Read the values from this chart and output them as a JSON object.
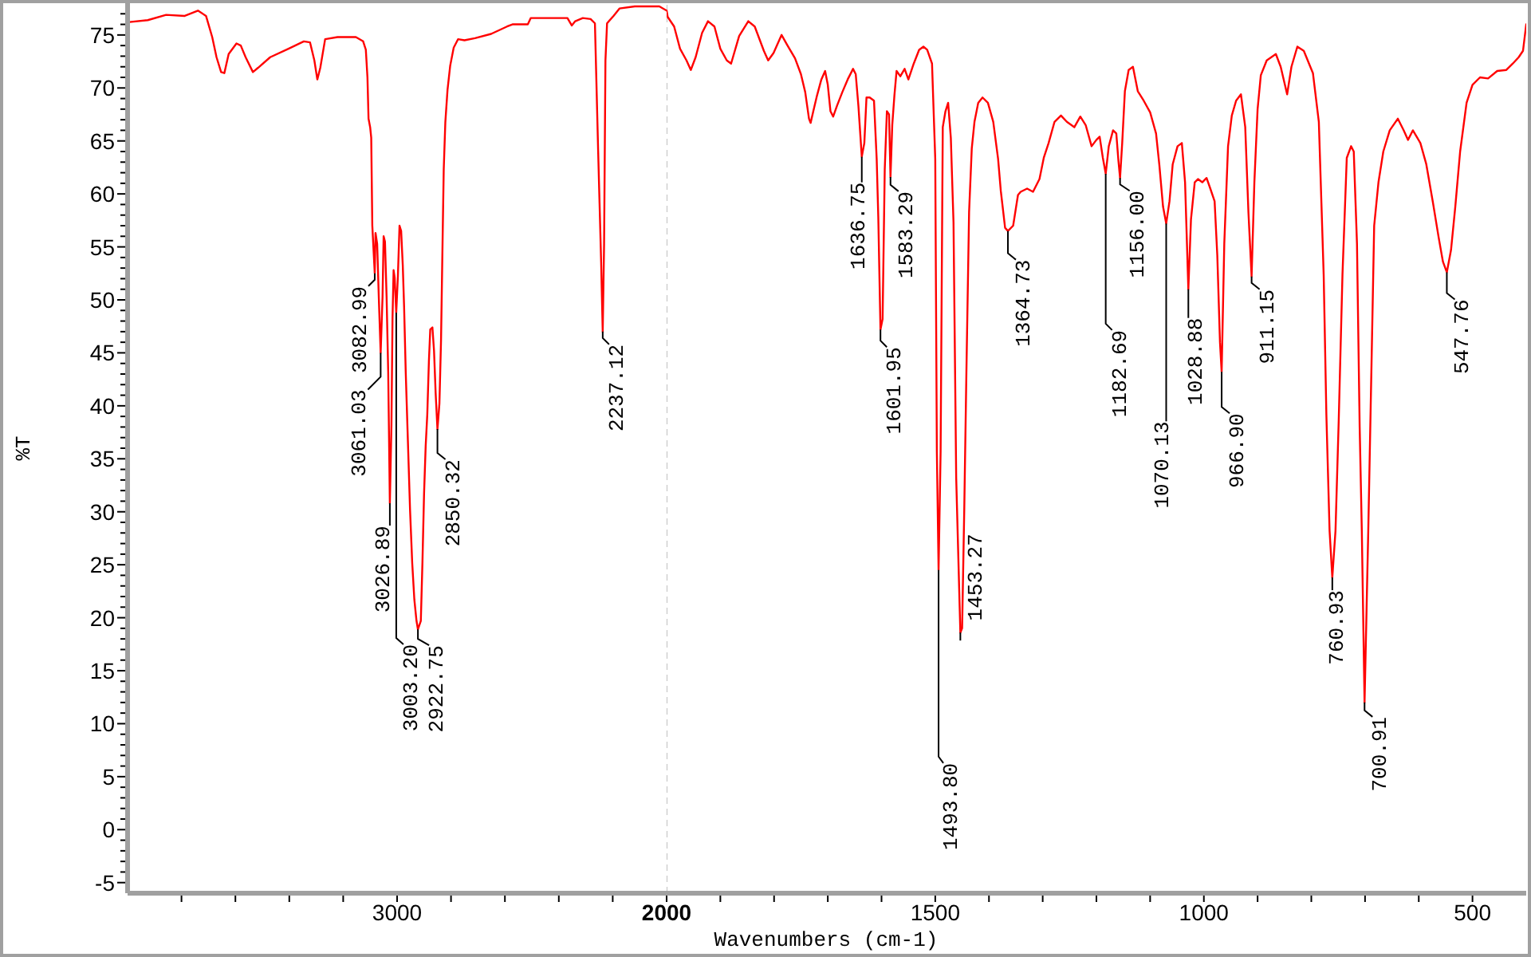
{
  "chart_data": [
    {
      "type": "line",
      "ylabel": "%T",
      "x": [
        4000,
        3925,
        3857,
        3788,
        3739,
        3709,
        3686,
        3670,
        3653,
        3641,
        3625,
        3596,
        3580,
        3562,
        3535,
        3516,
        3471,
        3403,
        3346,
        3323,
        3307,
        3296,
        3285,
        3267,
        3221,
        3153,
        3126,
        3116,
        3110,
        3106,
        3100,
        3096,
        3092,
        3082.99,
        3080,
        3074,
        3068,
        3061.03,
        3054,
        3050,
        3045,
        3039,
        3033,
        3026.89,
        3021,
        3017,
        3013,
        3009,
        3003.2,
        2997,
        2991,
        2985,
        2979,
        2974,
        2968,
        2960,
        2952,
        2944,
        2936,
        2928,
        2922.75,
        2912,
        2906,
        2900,
        2894,
        2888,
        2882,
        2877,
        2869,
        2863,
        2857,
        2850.32,
        2843,
        2837,
        2831,
        2827,
        2821,
        2813,
        2803,
        2790,
        2774,
        2750,
        2711,
        2651,
        2592,
        2572,
        2515,
        2504,
        2368,
        2352,
        2339,
        2311,
        2282,
        2266,
        2254,
        2243,
        2237.12,
        2232,
        2227,
        2221,
        2197,
        2175,
        2118,
        2027,
        2000
      ],
      "values": [
        76.2,
        76.4,
        76.9,
        76.8,
        77.3,
        76.8,
        74.8,
        72.9,
        71.5,
        71.4,
        73.2,
        74.2,
        74.0,
        72.9,
        71.5,
        71.9,
        72.9,
        73.7,
        74.4,
        74.3,
        72.6,
        70.8,
        71.9,
        74.6,
        74.8,
        74.8,
        74.4,
        73.6,
        71.0,
        67.1,
        66.3,
        65.3,
        57.0,
        52.5,
        56.3,
        55.3,
        50.3,
        45.0,
        50.3,
        56.0,
        55.5,
        50.3,
        43.2,
        30.8,
        38.2,
        48.3,
        52.8,
        52.1,
        48.8,
        52.3,
        57.0,
        56.5,
        53.3,
        49.3,
        43.2,
        36.7,
        30.2,
        25.2,
        21.7,
        19.7,
        18.9,
        19.7,
        25.2,
        31.7,
        36.2,
        39.2,
        44.2,
        47.2,
        47.4,
        45.2,
        41.2,
        37.8,
        40.2,
        46.2,
        56.0,
        62.3,
        66.8,
        69.8,
        72.1,
        73.8,
        74.6,
        74.5,
        74.7,
        75.1,
        75.8,
        76.0,
        76.0,
        76.6,
        76.6,
        75.9,
        76.3,
        76.6,
        76.5,
        76.1,
        64.0,
        53.6,
        47.0,
        55.3,
        72.6,
        76.1,
        76.8,
        77.5,
        77.7,
        77.7,
        77.3
      ],
      "color": "#ff0000",
      "marker": "none",
      "line_style": "solid",
      "xlim": [
        4000,
        2000
      ],
      "xticks": [
        {
          "value": 3800,
          "label": null
        },
        {
          "value": 3600,
          "label": null
        },
        {
          "value": 3400,
          "label": null
        },
        {
          "value": 3200,
          "label": null
        },
        3000,
        {
          "value": 2800,
          "label": null
        },
        {
          "value": 2600,
          "label": null
        },
        {
          "value": 2400,
          "label": null
        },
        {
          "value": 2200,
          "label": null
        },
        2000
      ],
      "ylim": [
        -6,
        78
      ],
      "yticks": [
        -5,
        {
          "value": -4,
          "label": null
        },
        {
          "value": -3,
          "label": null
        },
        {
          "value": -2,
          "label": null
        },
        {
          "value": -1,
          "label": null
        },
        0,
        {
          "value": 1,
          "label": null
        },
        {
          "value": 2,
          "label": null
        },
        {
          "value": 3,
          "label": null
        },
        {
          "value": 4,
          "label": null
        },
        5,
        {
          "value": 6,
          "label": null
        },
        {
          "value": 7,
          "label": null
        },
        {
          "value": 8,
          "label": null
        },
        {
          "value": 9,
          "label": null
        },
        10,
        {
          "value": 11,
          "label": null
        },
        {
          "value": 12,
          "label": null
        },
        {
          "value": 13,
          "label": null
        },
        {
          "value": 14,
          "label": null
        },
        15,
        {
          "value": 16,
          "label": null
        },
        {
          "value": 17,
          "label": null
        },
        {
          "value": 18,
          "label": null
        },
        {
          "value": 19,
          "label": null
        },
        20,
        {
          "value": 21,
          "label": null
        },
        {
          "value": 22,
          "label": null
        },
        {
          "value": 23,
          "label": null
        },
        {
          "value": 24,
          "label": null
        },
        25,
        {
          "value": 26,
          "label": null
        },
        {
          "value": 27,
          "label": null
        },
        {
          "value": 28,
          "label": null
        },
        {
          "value": 29,
          "label": null
        },
        30,
        {
          "value": 31,
          "label": null
        },
        {
          "value": 32,
          "label": null
        },
        {
          "value": 33,
          "label": null
        },
        {
          "value": 34,
          "label": null
        },
        35,
        {
          "value": 36,
          "label": null
        },
        {
          "value": 37,
          "label": null
        },
        {
          "value": 38,
          "label": null
        },
        {
          "value": 39,
          "label": null
        },
        40,
        {
          "value": 41,
          "label": null
        },
        {
          "value": 42,
          "label": null
        },
        {
          "value": 43,
          "label": null
        },
        {
          "value": 44,
          "label": null
        },
        45,
        {
          "value": 46,
          "label": null
        },
        {
          "value": 47,
          "label": null
        },
        {
          "value": 48,
          "label": null
        },
        {
          "value": 49,
          "label": null
        },
        50,
        {
          "value": 51,
          "label": null
        },
        {
          "value": 52,
          "label": null
        },
        {
          "value": 53,
          "label": null
        },
        {
          "value": 54,
          "label": null
        },
        55,
        {
          "value": 56,
          "label": null
        },
        {
          "value": 57,
          "label": null
        },
        {
          "value": 58,
          "label": null
        },
        {
          "value": 59,
          "label": null
        },
        60,
        {
          "value": 61,
          "label": null
        },
        {
          "value": 62,
          "label": null
        },
        {
          "value": 63,
          "label": null
        },
        {
          "value": 64,
          "label": null
        },
        65,
        {
          "value": 66,
          "label": null
        },
        {
          "value": 67,
          "label": null
        },
        {
          "value": 68,
          "label": null
        },
        {
          "value": 69,
          "label": null
        },
        70,
        {
          "value": 71,
          "label": null
        },
        {
          "value": 72,
          "label": null
        },
        {
          "value": 73,
          "label": null
        },
        {
          "value": 74,
          "label": null
        },
        75,
        {
          "value": 76,
          "label": null
        },
        {
          "value": 77,
          "label": null
        }
      ],
      "annotations": [
        {
          "text": "3082.99",
          "x": 3082.99,
          "y": 52.5
        },
        {
          "text": "3061.03",
          "x": 3061.03,
          "y": 45.0
        },
        {
          "text": "3026.89",
          "x": 3026.89,
          "y": 30.8
        },
        {
          "text": "3003.20",
          "x": 3003.2,
          "y": 48.8
        },
        {
          "text": "2922.75",
          "x": 2922.75,
          "y": 18.9
        },
        {
          "text": "2850.32",
          "x": 2850.32,
          "y": 37.8
        },
        {
          "text": "2237.12",
          "x": 2237.12,
          "y": 47.0
        }
      ]
    },
    {
      "type": "line",
      "xlabel": "Wavenumbers (cm-1)",
      "x": [
        2000,
        1998,
        1986,
        1975,
        1963,
        1955,
        1946,
        1934,
        1923,
        1911,
        1900,
        1888,
        1880,
        1865,
        1848,
        1836,
        1819,
        1811,
        1801,
        1786,
        1776,
        1761,
        1750,
        1742,
        1735,
        1732,
        1727,
        1720,
        1712,
        1705,
        1700,
        1695,
        1690,
        1683,
        1673,
        1663,
        1653,
        1648,
        1643,
        1636.75,
        1632,
        1628,
        1622,
        1614,
        1609,
        1606,
        1601.95,
        1598,
        1594,
        1590,
        1586,
        1583.29,
        1580,
        1576,
        1572,
        1565,
        1557,
        1550,
        1540,
        1530,
        1522,
        1515,
        1506,
        1500,
        1497,
        1493.8,
        1490,
        1486,
        1481,
        1476,
        1471,
        1466,
        1461,
        1453.27,
        1450,
        1446,
        1442,
        1437,
        1432,
        1427,
        1420,
        1412,
        1402,
        1392,
        1383,
        1378,
        1370,
        1364.73,
        1355,
        1346,
        1341,
        1329,
        1318,
        1306,
        1298,
        1289,
        1278,
        1266,
        1255,
        1241,
        1230,
        1220,
        1209,
        1200,
        1194,
        1188,
        1182.69,
        1177,
        1169,
        1163,
        1159,
        1156,
        1152,
        1147,
        1140,
        1132,
        1123,
        1112,
        1100,
        1089,
        1083,
        1076,
        1070.13,
        1064,
        1058,
        1049,
        1041,
        1035,
        1028.88,
        1024,
        1017,
        1011,
        1003,
        995,
        988,
        980,
        975,
        970,
        966.9,
        962,
        955,
        948,
        940,
        931,
        923,
        917,
        911.15,
        906,
        900,
        894,
        883,
        866,
        857,
        845,
        837,
        826,
        814,
        797,
        786,
        777,
        772,
        766,
        760.93,
        755,
        749,
        742,
        734,
        726,
        721,
        715,
        710,
        706,
        700.91,
        694,
        688,
        683,
        675,
        666,
        654,
        639,
        628,
        620,
        611,
        597,
        586,
        574,
        563,
        555,
        547.76,
        540,
        532,
        523,
        511,
        500,
        486,
        471,
        454,
        437,
        425,
        414,
        406,
        400
      ],
      "values": [
        77.3,
        76.7,
        75.8,
        73.7,
        72.6,
        71.7,
        72.9,
        75.2,
        76.3,
        75.8,
        73.7,
        72.6,
        72.3,
        74.9,
        76.3,
        75.8,
        73.5,
        72.6,
        73.3,
        75.0,
        74.1,
        72.8,
        71.3,
        69.6,
        67.1,
        66.7,
        67.8,
        69.3,
        70.8,
        71.6,
        70.3,
        67.8,
        67.3,
        68.3,
        69.6,
        70.8,
        71.8,
        71.3,
        68.3,
        63.5,
        64.8,
        69.1,
        69.1,
        68.8,
        63.3,
        57.8,
        47.2,
        48.2,
        62.3,
        67.8,
        67.5,
        61.6,
        66.5,
        69.3,
        71.6,
        71.1,
        71.8,
        70.8,
        72.3,
        73.6,
        73.9,
        73.6,
        72.3,
        63.3,
        35.7,
        24.5,
        35.7,
        66.3,
        67.8,
        68.6,
        65.3,
        57.3,
        33.2,
        18.6,
        19.0,
        30.2,
        43.2,
        58.3,
        64.3,
        66.8,
        68.6,
        69.1,
        68.6,
        66.8,
        63.3,
        60.3,
        56.8,
        56.5,
        57.0,
        59.9,
        60.2,
        60.5,
        60.2,
        61.4,
        63.4,
        64.8,
        66.8,
        67.4,
        66.8,
        66.3,
        67.3,
        66.5,
        64.5,
        65.1,
        65.4,
        63.4,
        61.9,
        64.5,
        66.0,
        65.7,
        63.1,
        61.5,
        64.8,
        69.7,
        71.7,
        72.0,
        69.7,
        68.8,
        67.7,
        65.7,
        62.8,
        58.8,
        57.2,
        59.3,
        62.8,
        64.5,
        64.8,
        61.1,
        51.0,
        57.6,
        61.1,
        61.4,
        61.1,
        61.5,
        60.5,
        59.3,
        54.2,
        46.0,
        43.2,
        55.3,
        64.5,
        67.4,
        68.8,
        69.4,
        66.3,
        58.2,
        52.2,
        61.1,
        68.0,
        71.2,
        72.6,
        73.2,
        72.0,
        69.4,
        72.0,
        73.9,
        73.5,
        71.4,
        66.8,
        52.4,
        39.2,
        28.2,
        23.8,
        28.2,
        38.6,
        52.4,
        63.4,
        64.5,
        64.0,
        55.3,
        38.0,
        28.2,
        12.0,
        28.2,
        43.8,
        57.0,
        61.1,
        64.0,
        66.0,
        67.1,
        66.0,
        65.1,
        66.0,
        64.8,
        62.8,
        59.3,
        55.9,
        53.6,
        52.6,
        54.7,
        58.8,
        64.0,
        68.6,
        70.3,
        71.0,
        70.9,
        71.6,
        71.7,
        72.3,
        72.9,
        73.5,
        76.0
      ],
      "color": "#ff0000",
      "marker": "none",
      "line_style": "solid",
      "xlim": [
        2000,
        400
      ],
      "xticks": [
        {
          "value": 1900,
          "label": null
        },
        {
          "value": 1800,
          "label": null
        },
        {
          "value": 1700,
          "label": null
        },
        {
          "value": 1600,
          "label": null
        },
        1500,
        {
          "value": 1400,
          "label": null
        },
        {
          "value": 1300,
          "label": null
        },
        {
          "value": 1200,
          "label": null
        },
        {
          "value": 1100,
          "label": null
        },
        1000,
        {
          "value": 900,
          "label": null
        },
        {
          "value": 800,
          "label": null
        },
        {
          "value": 700,
          "label": null
        },
        {
          "value": 600,
          "label": null
        },
        500
      ],
      "ylim": [
        -6,
        78
      ],
      "tick_labels": "x",
      "ref_lines": [
        {
          "axis": "x",
          "value": 2000,
          "color": "#c0c0c0",
          "line_style": "dashed"
        }
      ],
      "annotations": [
        {
          "text": "1636.75",
          "x": 1636.75,
          "y": 63.5
        },
        {
          "text": "1601.95",
          "x": 1601.95,
          "y": 47.2
        },
        {
          "text": "1583.29",
          "x": 1583.29,
          "y": 61.6
        },
        {
          "text": "1493.80",
          "x": 1493.8,
          "y": 24.5
        },
        {
          "text": "1453.27",
          "x": 1453.27,
          "y": 18.6
        },
        {
          "text": "1364.73",
          "x": 1364.73,
          "y": 56.5
        },
        {
          "text": "1182.69",
          "x": 1182.69,
          "y": 61.9
        },
        {
          "text": "1156.00",
          "x": 1156,
          "y": 61.5
        },
        {
          "text": "1070.13",
          "x": 1070.13,
          "y": 57.2
        },
        {
          "text": "1028.88",
          "x": 1028.88,
          "y": 51.0
        },
        {
          "text": "966.90",
          "x": 966.9,
          "y": 43.2
        },
        {
          "text": "911.15",
          "x": 911.15,
          "y": 52.2
        },
        {
          "text": "760.93",
          "x": 760.93,
          "y": 23.8
        },
        {
          "text": "700.91",
          "x": 700.91,
          "y": 12.0
        },
        {
          "text": "547.76",
          "x": 547.76,
          "y": 52.6
        }
      ]
    }
  ]
}
